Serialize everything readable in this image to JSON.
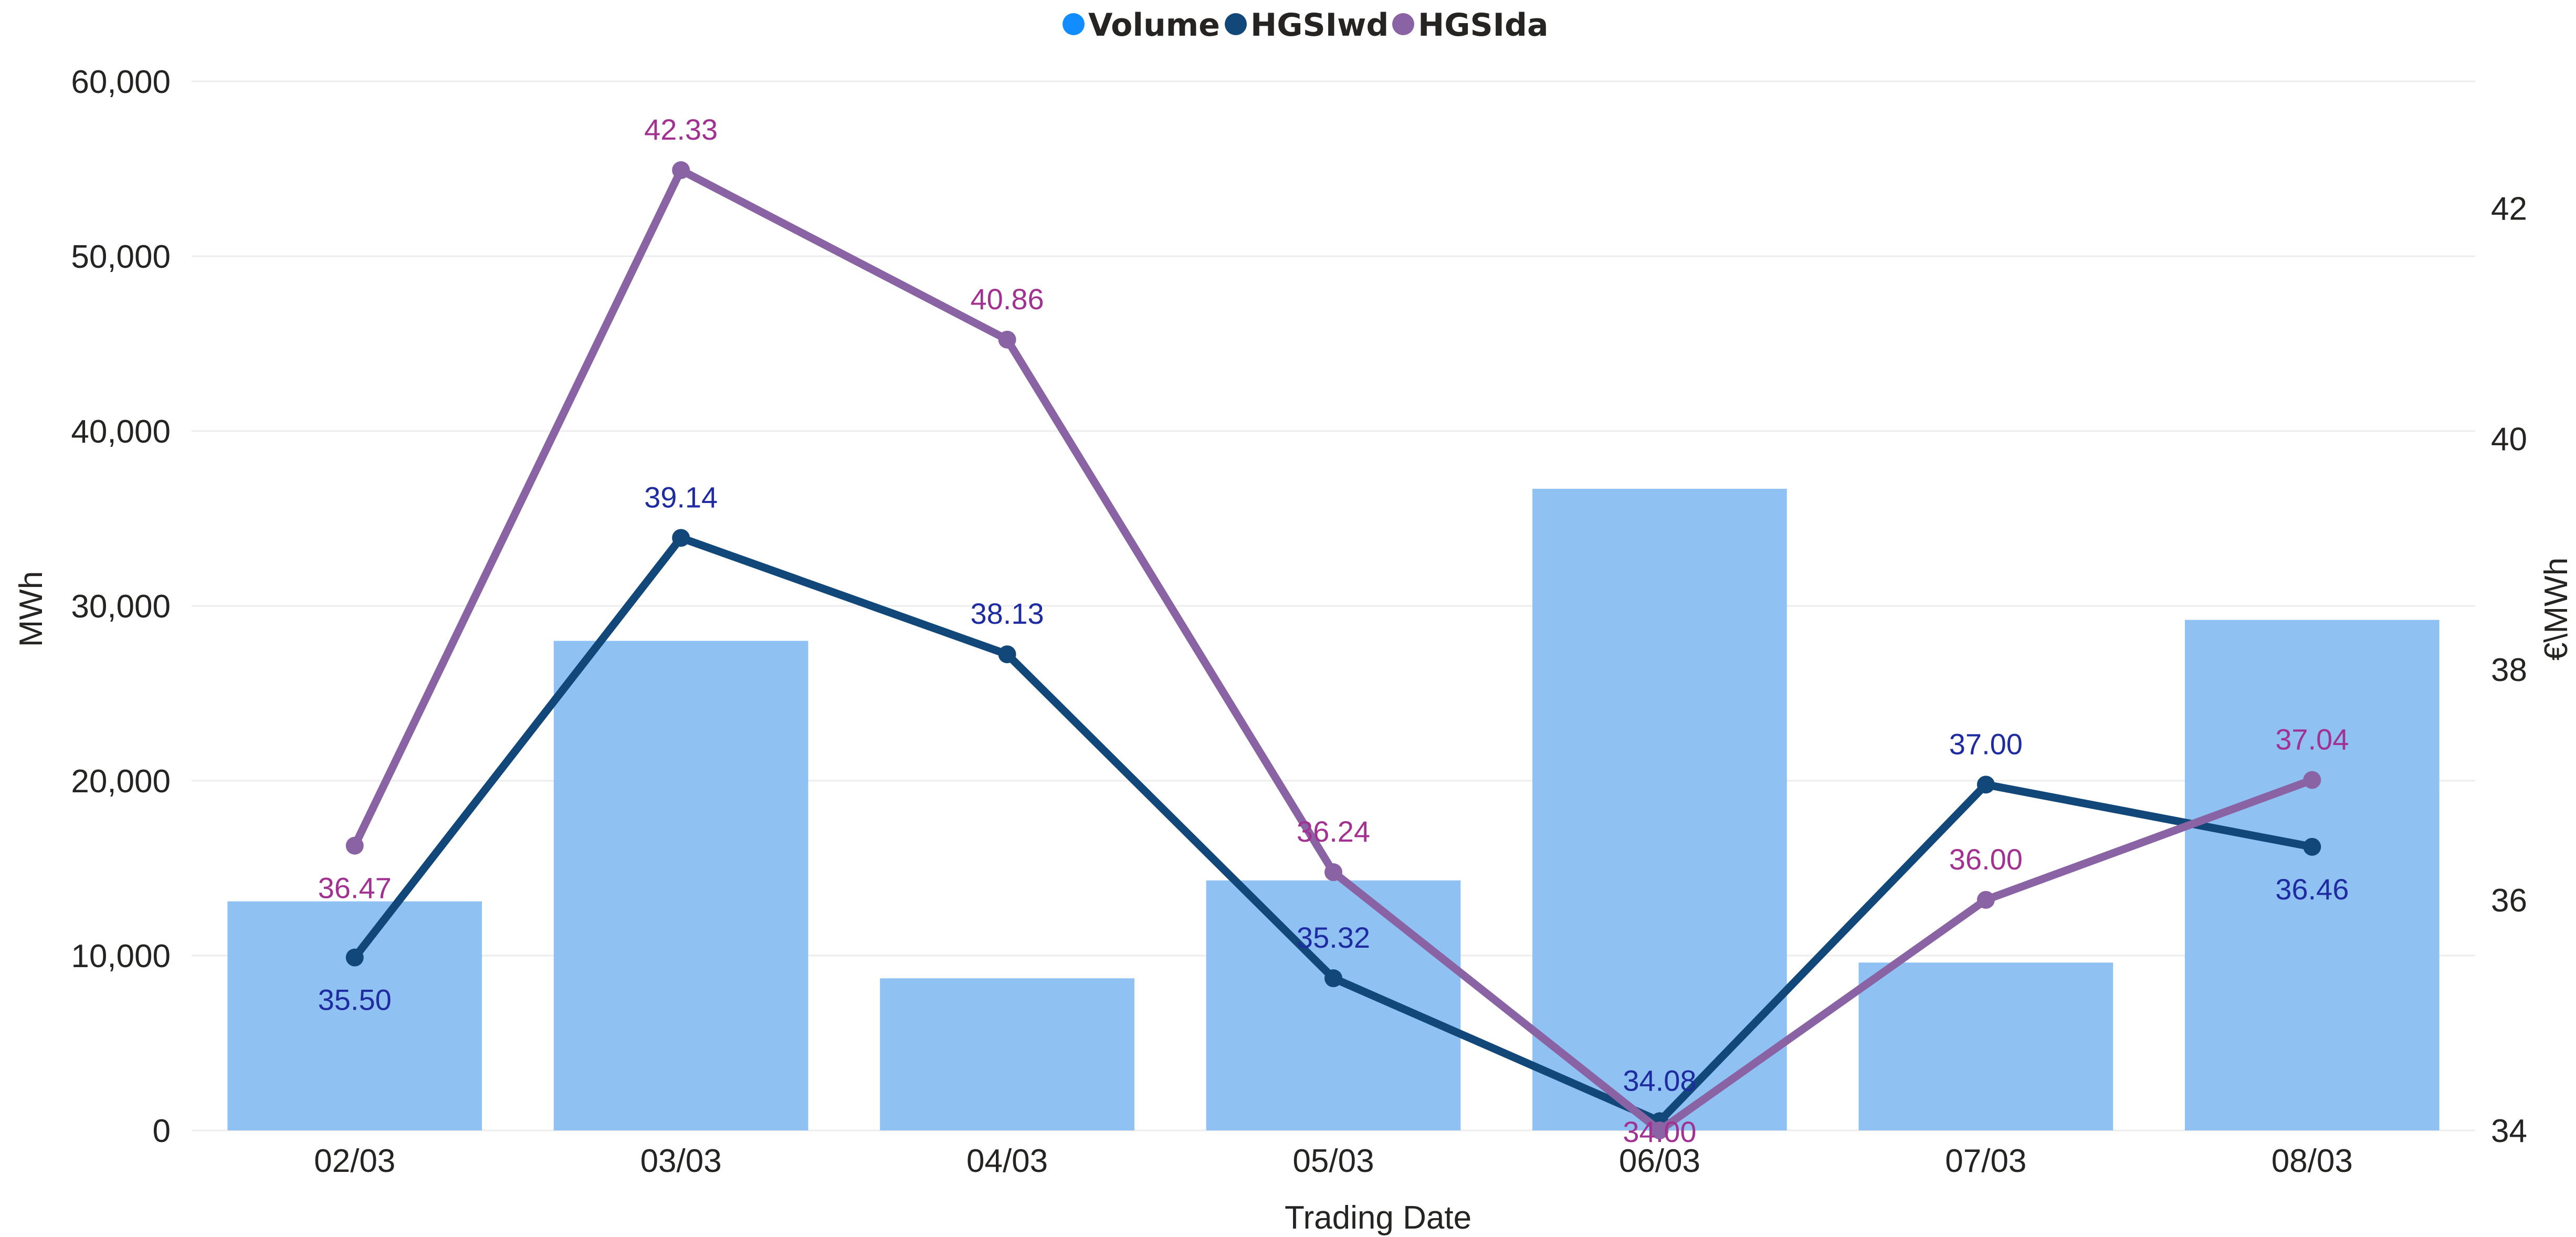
{
  "legend": {
    "items": [
      {
        "label": "Volume",
        "color": "#118DFF"
      },
      {
        "label": "HGSIwd",
        "color": "#12477A"
      },
      {
        "label": "HGSIda",
        "color": "#8A63A4"
      }
    ]
  },
  "chart_data": {
    "type": "bar",
    "xlabel": "Trading Date",
    "ylabel_left": "MWh",
    "ylabel_right": "€\\MWh",
    "categories": [
      "02/03",
      "03/03",
      "04/03",
      "05/03",
      "06/03",
      "07/03",
      "08/03"
    ],
    "y_left": {
      "range": [
        0,
        60000
      ],
      "ticks": [
        0,
        10000,
        20000,
        30000,
        40000,
        50000,
        60000
      ],
      "tick_labels": [
        "0",
        "10,000",
        "20,000",
        "30,000",
        "40,000",
        "50,000",
        "60,000"
      ]
    },
    "y_right": {
      "range": [
        34,
        43.1
      ],
      "ticks": [
        34,
        36,
        38,
        40,
        42
      ],
      "tick_labels": [
        "34",
        "36",
        "38",
        "40",
        "42"
      ]
    },
    "grid": true,
    "legend_position": "top-center",
    "series": [
      {
        "name": "Volume",
        "kind": "bar",
        "axis": "left",
        "color": "#8FC1F2",
        "values": [
          13100,
          28000,
          8700,
          14300,
          36700,
          9600,
          29200
        ]
      },
      {
        "name": "HGSIwd",
        "kind": "line",
        "axis": "right",
        "color": "#12477A",
        "label_color": "#1F2BA0",
        "values": [
          35.5,
          39.14,
          38.13,
          35.32,
          34.08,
          37.0,
          36.46
        ],
        "labels": [
          "35.50",
          "39.14",
          "38.13",
          "35.32",
          "34.08",
          "37.00",
          "36.46"
        ]
      },
      {
        "name": "HGSIda",
        "kind": "line",
        "axis": "right",
        "color": "#8A63A4",
        "label_color": "#A23291",
        "values": [
          36.47,
          42.33,
          40.86,
          36.24,
          34.0,
          36.0,
          37.04
        ],
        "labels": [
          "36.47",
          "42.33",
          "40.86",
          "36.24",
          "34.00",
          "36.00",
          "37.04"
        ]
      }
    ]
  }
}
